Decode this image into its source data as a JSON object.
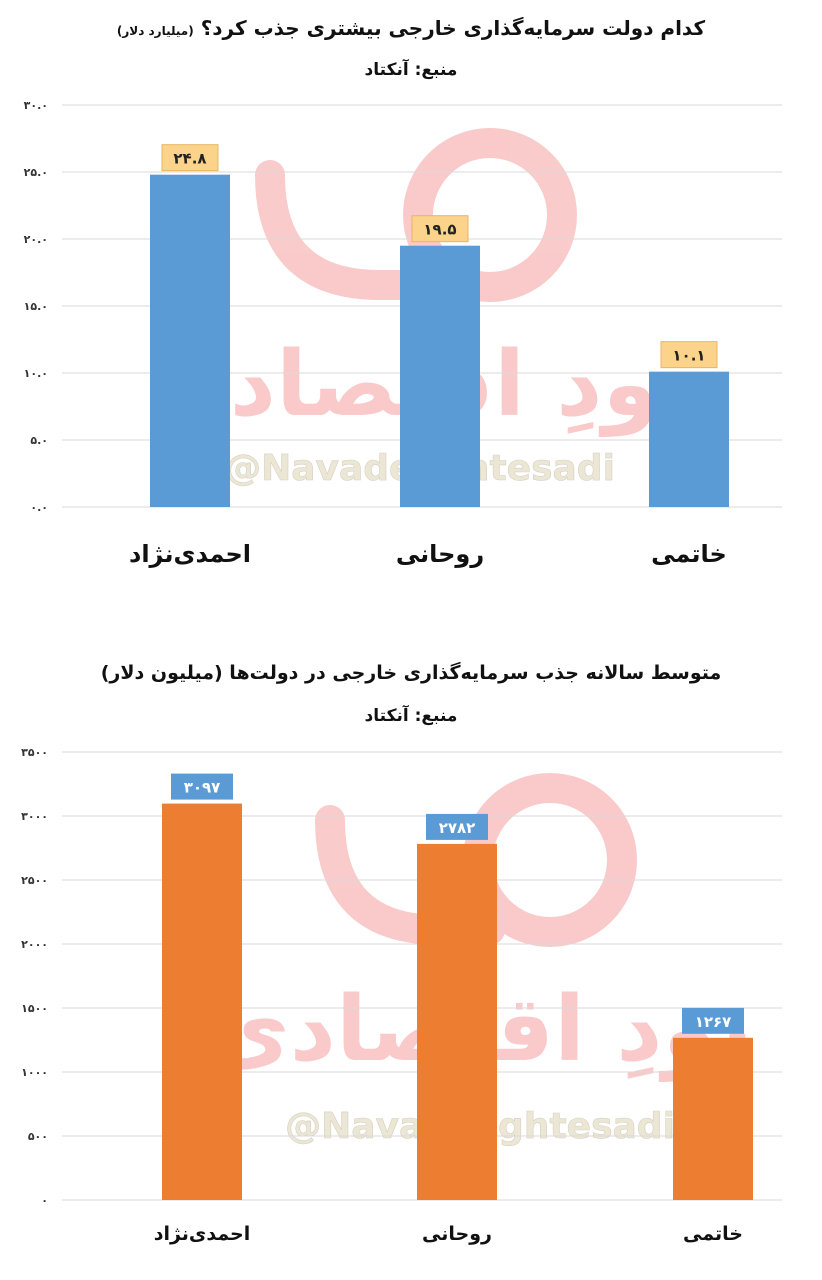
{
  "chart_data": [
    {
      "type": "bar",
      "title": "کدام دولت سرمایه‌گذاری خارجی بیشتری جذب کرد؟",
      "title_note": "(میلیارد دلار)",
      "source": "منبع: آنکتاد",
      "categories": [
        "احمدی‌نژاد",
        "روحانی",
        "خاتمی"
      ],
      "values": [
        24.8,
        19.5,
        10.1
      ],
      "data_labels": [
        "۲۴.۸",
        "۱۹.۵",
        "۱۰.۱"
      ],
      "yticks": [
        "۰.۰",
        "۵.۰",
        "۱۰.۰",
        "۱۵.۰",
        "۲۰.۰",
        "۲۵.۰",
        "۳۰.۰"
      ],
      "ylim": [
        0,
        30
      ],
      "grid": true,
      "bar_color": "#5b9bd5",
      "label_bg": "#fbd38a"
    },
    {
      "type": "bar",
      "title": "متوسط سالانه جذب سرمایه‌گذاری خارجی در دولت‌ها (میلیون دلار)",
      "source": "منبع: آنکتاد",
      "categories": [
        "احمدی‌نژاد",
        "روحانی",
        "خاتمی"
      ],
      "values": [
        3097,
        2782,
        1267
      ],
      "data_labels": [
        "۳۰۹۷",
        "۲۷۸۲",
        "۱۲۶۷"
      ],
      "yticks": [
        "۰",
        "۵۰۰",
        "۱۰۰۰",
        "۱۵۰۰",
        "۲۰۰۰",
        "۲۵۰۰",
        "۳۰۰۰",
        "۳۵۰۰"
      ],
      "ylim": [
        0,
        3500
      ],
      "grid": true,
      "bar_color": "#ed7d31",
      "label_bg": "#5b9bd5"
    }
  ],
  "watermark": {
    "brand": "نودِ اقتصادی",
    "handle": "@NavadeEghtesadi",
    "color": "#f26b6b"
  }
}
